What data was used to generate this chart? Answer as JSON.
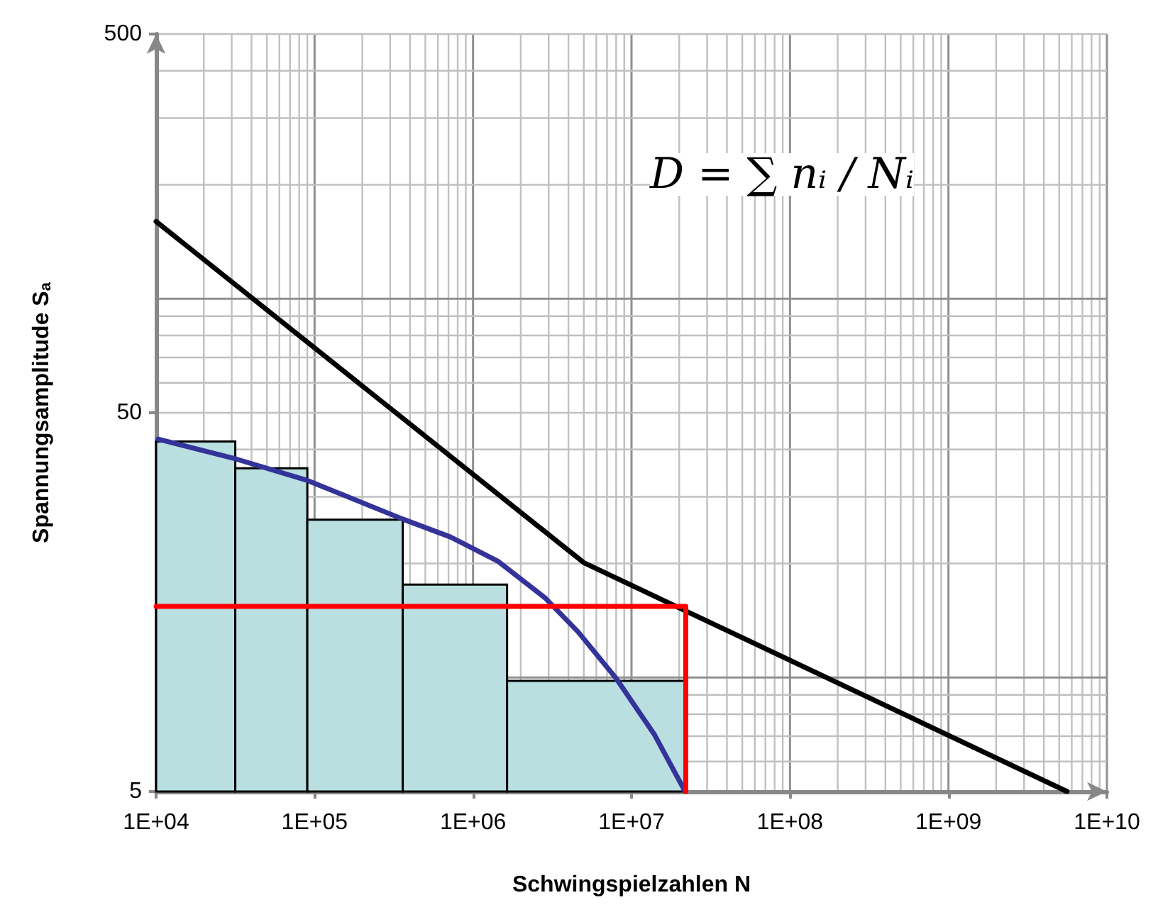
{
  "chart_data": {
    "type": "histogram",
    "bins": [
      10000,
      31600,
      90000,
      360000,
      1640000,
      22000000
    ],
    "values": [
      42,
      35.7,
      26.1,
      17.6,
      9.8
    ],
    "color": "#b9dfe1",
    "series": [
      {
        "type": "line",
        "color": "#000000",
        "x": [
          10000,
          5000000,
          5600000000
        ],
        "values": [
          160,
          20.1,
          5
        ]
      },
      {
        "type": "line",
        "color": "#333399",
        "x": [
          10300,
          32300,
          90800,
          360000,
          720000,
          1430000,
          2860000,
          4600000,
          8000000,
          14000000,
          21800000
        ],
        "values": [
          42.6,
          37.7,
          33.1,
          26.2,
          23.5,
          20.3,
          16.2,
          13.2,
          9.95,
          7.05,
          5
        ]
      },
      {
        "type": "line",
        "color": "#ff0000",
        "x": [
          10000,
          22000000,
          22000000
        ],
        "values": [
          15.4,
          15.4,
          5
        ]
      }
    ],
    "xlim": [
      10000,
      10000000000
    ],
    "ylim": [
      5,
      500
    ],
    "xticks": [
      {
        "value": 10000,
        "label": "1E+04"
      },
      {
        "value": 100000,
        "label": "1E+05"
      },
      {
        "value": 1000000,
        "label": "1E+06"
      },
      {
        "value": 10000000,
        "label": "1E+07"
      },
      {
        "value": 100000000,
        "label": "1E+08"
      },
      {
        "value": 1000000000,
        "label": "1E+09"
      },
      {
        "value": 10000000000,
        "label": "1E+10"
      }
    ],
    "yticks": [
      5,
      50,
      500
    ],
    "log": "xy",
    "grid": true,
    "marker": "none",
    "line_style": "solid",
    "xlabel": "Schwingspielzahlen N",
    "ylabel": "Spannungsamplitude S$_{a}$",
    "annotations": [
      "D = ∑ nᵢ / Nᵢ"
    ]
  }
}
